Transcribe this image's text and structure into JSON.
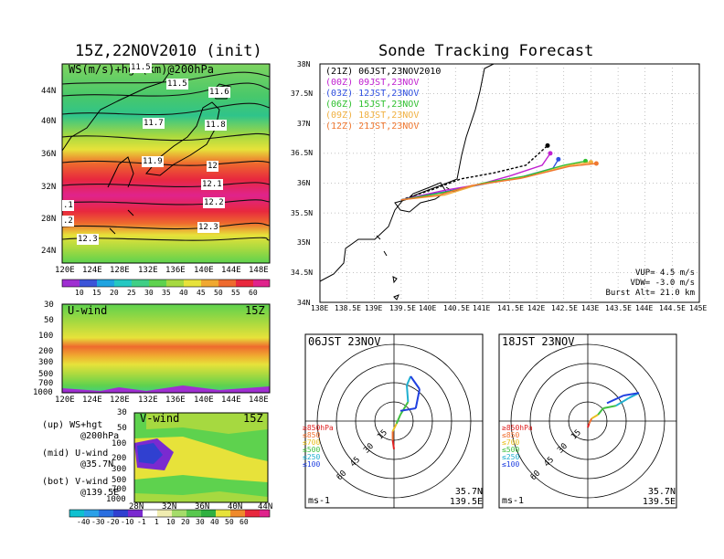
{
  "colors": {
    "ws_scale": [
      "#9f2fd1",
      "#3c54d8",
      "#1fa3e0",
      "#24c8c2",
      "#3fcf86",
      "#5ed24e",
      "#a6d940",
      "#e7e23a",
      "#f0a830",
      "#ee6a2e",
      "#e8283e",
      "#e0238c"
    ],
    "v_scale": [
      "#0fc0d0",
      "#2aa0e8",
      "#2a6fe0",
      "#3040d0",
      "#7a2ad0",
      "#ffffff",
      "#f0ecb0",
      "#a5dc6a",
      "#58c84e",
      "#2fb040",
      "#e6e23a",
      "#ef8a2c",
      "#e8283e",
      "#e0238c"
    ],
    "launch": [
      "#000000",
      "#c020d0",
      "#3050e0",
      "#30c030",
      "#f0b040",
      "#f07830"
    ]
  },
  "map_panel": {
    "title": "15Z,22NOV2010 (init)",
    "field_label": "WS(m/s)+hgt(km)@200hPa",
    "contour_labels": [
      "11.5",
      "11.5",
      "11.6",
      "11.7",
      "11.8",
      "11.9",
      "12",
      "12.1",
      "12.2",
      ".1",
      ".2",
      "12.3",
      "12.3"
    ],
    "lat_labels": [
      "44N",
      "40N",
      "36N",
      "32N",
      "28N",
      "24N"
    ],
    "lon_labels": [
      "120E",
      "124E",
      "128E",
      "132E",
      "136E",
      "140E",
      "144E",
      "148E"
    ],
    "colorbar_labels": [
      "10",
      "15",
      "20",
      "25",
      "30",
      "35",
      "40",
      "45",
      "50",
      "55",
      "60"
    ]
  },
  "u_panel": {
    "label": "U-wind",
    "time": "15Z",
    "y_labels": [
      "30",
      "50",
      "100",
      "200",
      "300",
      "500",
      "700",
      "1000"
    ],
    "x_labels": [
      "120E",
      "124E",
      "128E",
      "132E",
      "136E",
      "140E",
      "144E",
      "148E"
    ]
  },
  "v_panel": {
    "label": "V-wind",
    "time": "15Z",
    "y_labels": [
      "30",
      "50",
      "100",
      "200",
      "300",
      "500",
      "700",
      "1000"
    ],
    "x_labels": [
      "28N",
      "32N",
      "36N",
      "40N",
      "44N"
    ],
    "colorbar_labels": [
      "-40",
      "-30",
      "-20",
      "-10",
      "-1",
      "1",
      "10",
      "20",
      "30",
      "40",
      "50",
      "60"
    ]
  },
  "legend_notes": [
    {
      "key": "(up)",
      "text": "WS+hgt",
      "sub": "@200hPa"
    },
    {
      "key": "(mid)",
      "text": "U-wind",
      "sub": "@35.7N"
    },
    {
      "key": "(bot)",
      "text": "V-wind",
      "sub": "@139.5E"
    }
  ],
  "track_panel": {
    "title": "Sonde Tracking Forecast",
    "lat_labels": [
      "38N",
      "37.5N",
      "37N",
      "36.5N",
      "36N",
      "35.5N",
      "35N",
      "34.5N",
      "34N"
    ],
    "lon_labels": [
      "138E",
      "138.5E",
      "139E",
      "139.5E",
      "140E",
      "140.5E",
      "141E",
      "141.5E",
      "142E",
      "142.5E",
      "143E",
      "143.5E",
      "144E",
      "144.5E",
      "145E"
    ],
    "vup": "VUP= 4.5 m/s",
    "vdw": "VDW= -3.0 m/s",
    "burst": "Burst Alt= 21.0 km"
  },
  "chart_data": [
    {
      "type": "line",
      "title": "Sonde Tracking Forecast",
      "xlim": [
        138,
        145
      ],
      "ylim": [
        34,
        38
      ],
      "series": [
        {
          "name": "(21Z) 06JST,23NOV2010",
          "x": [
            139.5,
            140.1,
            140.6,
            141.2,
            141.8,
            142.2
          ],
          "y": [
            35.72,
            35.9,
            36.07,
            36.17,
            36.3,
            36.63
          ]
        },
        {
          "name": "(00Z) 09JST,23NOV",
          "x": [
            139.5,
            140.3,
            140.9,
            141.5,
            142.1,
            142.25
          ],
          "y": [
            35.72,
            35.88,
            35.97,
            36.12,
            36.3,
            36.5
          ]
        },
        {
          "name": "(03Z) 12JST,23NOV",
          "x": [
            139.5,
            140.4,
            141.0,
            141.7,
            142.3,
            142.4
          ],
          "y": [
            35.72,
            35.87,
            35.98,
            36.1,
            36.25,
            36.4
          ]
        },
        {
          "name": "(06Z) 15JST,23NOV",
          "x": [
            139.5,
            140.4,
            141.0,
            141.8,
            142.5,
            142.9
          ],
          "y": [
            35.72,
            35.86,
            36.0,
            36.12,
            36.3,
            36.37
          ]
        },
        {
          "name": "(09Z) 18JST,23NOV",
          "x": [
            139.5,
            140.3,
            140.9,
            141.8,
            142.6,
            143.0
          ],
          "y": [
            35.72,
            35.8,
            35.97,
            36.1,
            36.3,
            36.35
          ]
        },
        {
          "name": "(12Z) 21JST,23NOV",
          "x": [
            139.5,
            140.2,
            140.8,
            141.7,
            142.6,
            143.1
          ],
          "y": [
            35.72,
            35.8,
            35.96,
            36.08,
            36.28,
            36.33
          ]
        }
      ]
    },
    {
      "type": "line",
      "title": "06JST 23NOV",
      "location": [
        "35.7N",
        "139.5E"
      ],
      "unit": "ms-1",
      "ring_labels": [
        "15",
        "30",
        "45",
        "60"
      ],
      "level_labels": [
        "≥850hPa",
        "≤850",
        "≤700",
        "≤500",
        "≤250",
        "≤100"
      ],
      "series": [
        {
          "name": "hodograph",
          "u": [
            0,
            -1,
            -1,
            2,
            5,
            11,
            10,
            13,
            20,
            17,
            5
          ],
          "v": [
            -22,
            -15,
            -8,
            -2,
            5,
            15,
            28,
            35,
            25,
            10,
            8
          ]
        }
      ]
    },
    {
      "type": "line",
      "title": "18JST 23NOV",
      "location": [
        "35.7N",
        "139.5E"
      ],
      "unit": "ms-1",
      "ring_labels": [
        "15",
        "30",
        "45",
        "60"
      ],
      "level_labels": [
        "≥850hPa",
        "≤850",
        "≤700",
        "≤500",
        "≤250",
        "≤100"
      ],
      "series": [
        {
          "name": "hodograph",
          "u": [
            0,
            1,
            3,
            8,
            12,
            22,
            32,
            40,
            28,
            15
          ],
          "v": [
            -5,
            -2,
            2,
            5,
            10,
            12,
            18,
            22,
            20,
            14
          ]
        }
      ]
    }
  ]
}
